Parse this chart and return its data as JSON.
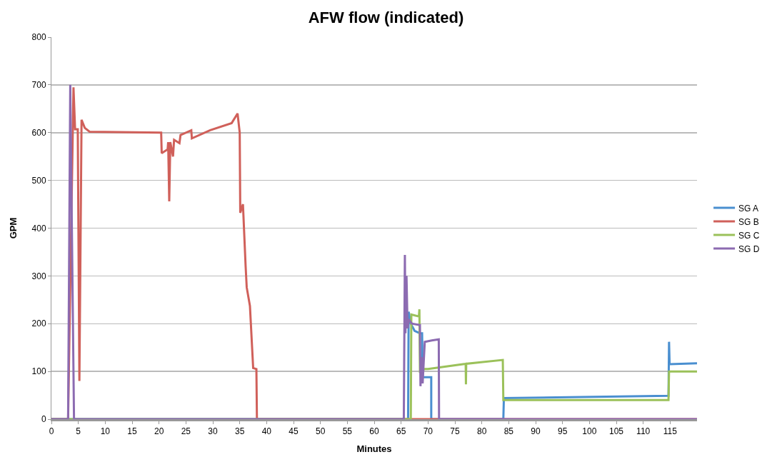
{
  "chart_data": {
    "type": "line",
    "title": "AFW flow (indicated)",
    "xlabel": "Minutes",
    "ylabel": "GPM",
    "xlim": [
      0,
      120
    ],
    "xticks": [
      0,
      5,
      10,
      15,
      20,
      25,
      30,
      35,
      40,
      45,
      50,
      55,
      60,
      65,
      70,
      75,
      80,
      85,
      90,
      95,
      100,
      105,
      110,
      115
    ],
    "ylim": [
      0,
      800
    ],
    "yticks": [
      0,
      100,
      200,
      300,
      400,
      500,
      600,
      700,
      800
    ],
    "grid": "y",
    "legend": "right",
    "marker": "none",
    "line_style": "solid",
    "series": [
      {
        "name": "SG A",
        "color": "#4a8fd0",
        "x": [
          0,
          66.3,
          66.4,
          66.8,
          67.5,
          68.5,
          68.9,
          69,
          70.6,
          70.6,
          84.0,
          84.1,
          114.7,
          114.8,
          114.9,
          115,
          120
        ],
        "values": [
          0,
          0,
          225,
          200,
          185,
          180,
          180,
          88,
          88,
          0,
          0,
          44,
          49,
          162,
          117,
          115,
          117
        ]
      },
      {
        "name": "SG B",
        "color": "#d0605a",
        "x": [
          0,
          3.1,
          4.1,
          4.4,
          4.9,
          5.2,
          5.6,
          6.2,
          7.1,
          20.4,
          20.5,
          21.6,
          21.7,
          21.9,
          22.1,
          22.6,
          22.8,
          23.8,
          24.0,
          26.0,
          26.1,
          29.5,
          33.5,
          34.6,
          35.0,
          35.1,
          35.6,
          36.1,
          36.3,
          36.9,
          37.5,
          38.1,
          38.2,
          120
        ],
        "values": [
          0,
          0,
          695,
          607,
          607,
          80,
          627,
          610,
          602,
          600,
          557,
          565,
          580,
          456,
          580,
          550,
          585,
          578,
          595,
          605,
          588,
          605,
          620,
          640,
          600,
          432,
          450,
          320,
          276,
          237,
          107,
          105,
          0,
          0
        ]
      },
      {
        "name": "SG C",
        "color": "#9bc15a",
        "x": [
          0,
          66.8,
          66.9,
          68.3,
          68.4,
          68.5,
          69.4,
          70,
          77,
          77.05,
          77.1,
          83.9,
          84.0,
          114.7,
          114.8,
          120
        ],
        "values": [
          0,
          0,
          219,
          215,
          230,
          100,
          105,
          105,
          116,
          73,
          116,
          124,
          40,
          40,
          100,
          100
        ]
      },
      {
        "name": "SG D",
        "color": "#8c6bb1",
        "x": [
          0,
          3.1,
          3.5,
          4.2,
          65.5,
          65.7,
          65.8,
          66,
          66.2,
          66.4,
          67,
          68.5,
          68.6,
          68.8,
          69,
          69.2,
          69.4,
          70.7,
          72,
          72.05,
          120
        ],
        "values": [
          0,
          0,
          700,
          0,
          0,
          344,
          180,
          300,
          190,
          209,
          200,
          197,
          69,
          130,
          75,
          120,
          162,
          165,
          167,
          0,
          0
        ]
      }
    ]
  }
}
